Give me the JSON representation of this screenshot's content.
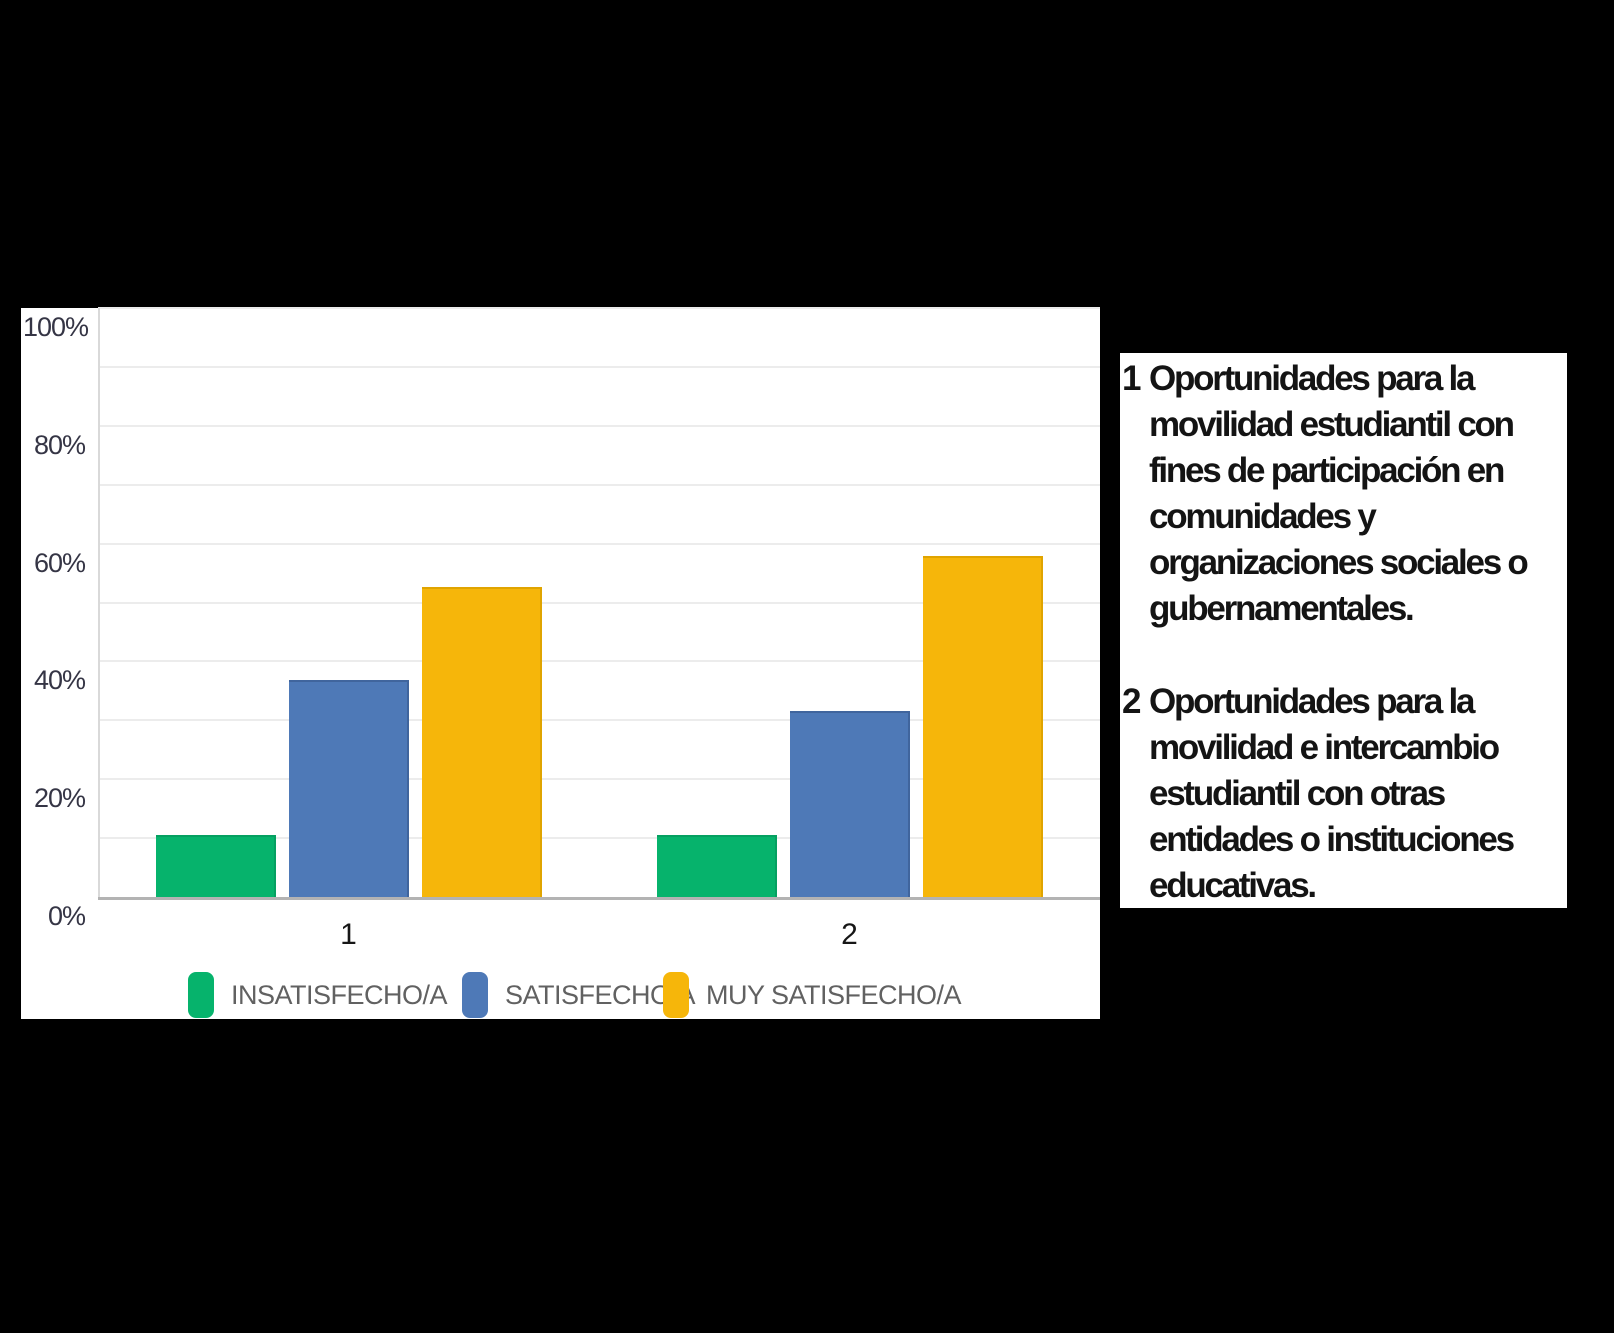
{
  "colors": {
    "canvas_background": "#000000",
    "panel_background": "#ffffff",
    "gridline": "#ececec",
    "axis_line": "#b3b3b3",
    "tick_text": "#353545",
    "legend_text": "#616161",
    "note_text": "#141414"
  },
  "chart_data": {
    "type": "bar",
    "categories": [
      "1",
      "2"
    ],
    "series": [
      {
        "name": "INSATISFECHO/A",
        "color": "#06b36c",
        "border": "#05a061",
        "values": [
          10.5,
          10.5
        ]
      },
      {
        "name": "SATISFECHO/A",
        "color": "#4e79b7",
        "border": "#40659d",
        "values": [
          36.8,
          31.6
        ]
      },
      {
        "name": "MUY SATISFECHO/A",
        "color": "#f6b60a",
        "border": "#e0a400",
        "values": [
          52.6,
          57.9
        ]
      }
    ],
    "y_ticks": [
      "0%",
      "20%",
      "40%",
      "60%",
      "80%",
      "100%"
    ],
    "ylim": [
      0,
      100
    ],
    "grid_step_pct": 10,
    "legend_position": "bottom",
    "xlabel": "",
    "ylabel": ""
  },
  "annotations": {
    "item1": {
      "marker": "1",
      "text": "Oportunidades para la\nmovilidad estudiantil con\nfines de participación en\ncomunidades y\norganizaciones sociales o\ngubernamentales."
    },
    "item2": {
      "marker": "2",
      "text": "Oportunidades para la\nmovilidad e intercambio\nestudiantil con otras\nentidades o instituciones\neducativas."
    }
  }
}
